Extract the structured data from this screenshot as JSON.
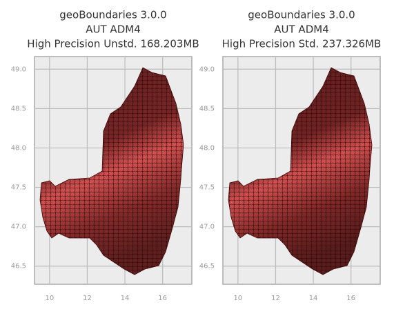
{
  "chart_data": [
    {
      "type": "map",
      "title": [
        "geoBoundaries 3.0.0",
        "AUT ADM4",
        "High Precision Unstd. 168.203MB"
      ],
      "xlim": [
        9.2,
        17.55
      ],
      "ylim": [
        46.27,
        49.16
      ],
      "xticks": [
        10,
        12,
        14,
        16
      ],
      "yticks": [
        {
          "value": 46.5,
          "label": "46.5"
        },
        {
          "value": 47,
          "label": "47.0"
        },
        {
          "value": 47.5,
          "label": "47.5"
        },
        {
          "value": 48,
          "label": "48.0"
        },
        {
          "value": 48.5,
          "label": "48.5"
        },
        {
          "value": 49,
          "label": "49.0"
        }
      ],
      "grid": true,
      "color": "#ff6b6b"
    },
    {
      "type": "map",
      "title": [
        "geoBoundaries 3.0.0",
        "AUT ADM4",
        "High Precision Std. 237.326MB"
      ],
      "xlim": [
        9.2,
        17.55
      ],
      "ylim": [
        46.27,
        49.16
      ],
      "xticks": [
        10,
        12,
        14,
        16
      ],
      "yticks": [
        {
          "value": 46.5,
          "label": "46.5"
        },
        {
          "value": 47,
          "label": "47.0"
        },
        {
          "value": 47.5,
          "label": "47.5"
        },
        {
          "value": 48,
          "label": "48.0"
        },
        {
          "value": 48.5,
          "label": "48.5"
        },
        {
          "value": 49,
          "label": "49.0"
        }
      ],
      "grid": true,
      "color": "#ff6b6b"
    }
  ]
}
